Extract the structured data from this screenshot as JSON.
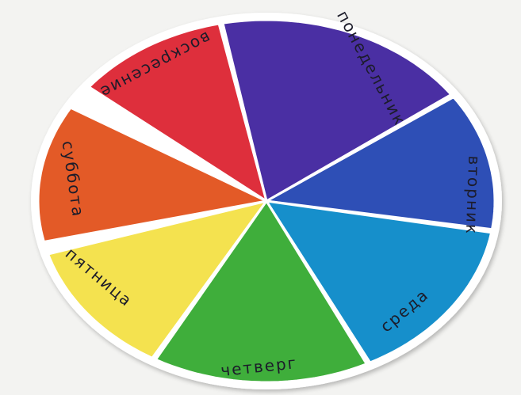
{
  "background": "#f3f3f1",
  "board_color": "#ffffff",
  "label_color": "#1c1c2a",
  "days": [
    {
      "name": "monday",
      "label": "понедельник",
      "color": "#4a2fa3"
    },
    {
      "name": "tuesday",
      "label": "вторник",
      "color": "#2e4fb6"
    },
    {
      "name": "wednesday",
      "label": "среда",
      "color": "#168fcb"
    },
    {
      "name": "thursday",
      "label": "четверг",
      "color": "#3fae3b"
    },
    {
      "name": "friday",
      "label": "пятница",
      "color": "#f4e24f"
    },
    {
      "name": "saturday",
      "label": "суббота",
      "color": "#e35a27"
    },
    {
      "name": "sunday",
      "label": "воскресение",
      "color": "#de2f3c"
    }
  ]
}
